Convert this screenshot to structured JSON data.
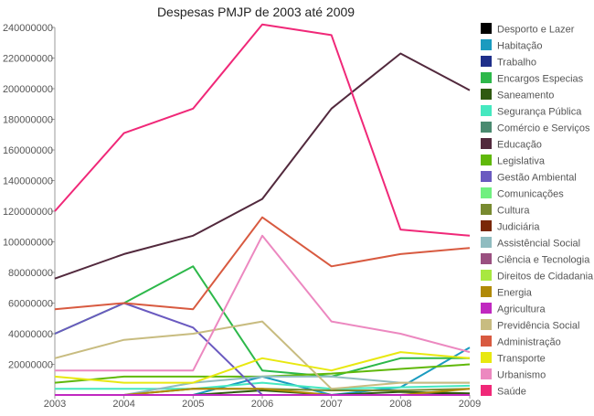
{
  "chart_data": {
    "type": "line",
    "title": "Despesas PMJP de 2003 até 2009",
    "xlabel": "",
    "ylabel": "",
    "x": [
      2003,
      2004,
      2005,
      2006,
      2007,
      2008,
      2009
    ],
    "ylim": [
      0,
      240000000
    ],
    "yticks": [
      20000000,
      40000000,
      60000000,
      80000000,
      100000000,
      120000000,
      140000000,
      160000000,
      180000000,
      200000000,
      220000000,
      240000000
    ],
    "ytick_labels": [
      "20000000",
      "40000000",
      "60000000",
      "80000000",
      "100000000",
      "120000000",
      "140000000",
      "160000000",
      "180000000",
      "200000000",
      "220000000",
      "240000000"
    ],
    "xtick_labels": [
      "2003",
      "2004",
      "2005",
      "2006",
      "2007",
      "2008",
      "2009"
    ],
    "grid": false,
    "legend_position": "right",
    "series": [
      {
        "name": "Desporto e Lazer",
        "color": "#000000",
        "values": [
          0,
          0,
          0,
          0,
          0,
          0,
          500000
        ]
      },
      {
        "name": "Habitação",
        "color": "#1a9bbf",
        "values": [
          0,
          0,
          0,
          12000000,
          0,
          5000000,
          31000000
        ]
      },
      {
        "name": "Trabalho",
        "color": "#1f2f8a",
        "values": [
          0,
          0,
          0,
          0,
          0,
          0,
          0
        ]
      },
      {
        "name": "Encargos Especias",
        "color": "#2db84a",
        "values": [
          40000000,
          60000000,
          84000000,
          16000000,
          12000000,
          24000000,
          24000000
        ]
      },
      {
        "name": "Saneamento",
        "color": "#2f5a10",
        "values": [
          0,
          0,
          0,
          3000000,
          0,
          2000000,
          1000000
        ]
      },
      {
        "name": "Segurança Pública",
        "color": "#45e8c0",
        "values": [
          4000000,
          4000000,
          4000000,
          8000000,
          4000000,
          5000000,
          6000000
        ]
      },
      {
        "name": "Comércio e Serviços",
        "color": "#4a8a70",
        "values": [
          0,
          0,
          0,
          0,
          0,
          0,
          0
        ]
      },
      {
        "name": "Educação",
        "color": "#52293d",
        "values": [
          76000000,
          92000000,
          104000000,
          128000000,
          187000000,
          223000000,
          199000000
        ]
      },
      {
        "name": "Legislativa",
        "color": "#60b80a",
        "values": [
          8000000,
          12000000,
          12000000,
          12000000,
          14000000,
          17000000,
          20000000
        ]
      },
      {
        "name": "Gestão Ambiental",
        "color": "#6a5ac0",
        "values": [
          40000000,
          60000000,
          44000000,
          0,
          0,
          0,
          0
        ]
      },
      {
        "name": "Comunicações",
        "color": "#70f080",
        "values": [
          0,
          0,
          0,
          0,
          0,
          0,
          0
        ]
      },
      {
        "name": "Cultura",
        "color": "#788a30",
        "values": [
          0,
          0,
          4000000,
          4000000,
          3000000,
          3000000,
          4000000
        ]
      },
      {
        "name": "Judiciária",
        "color": "#7a2808",
        "values": [
          0,
          0,
          0,
          0,
          0,
          0,
          0
        ]
      },
      {
        "name": "Assistêncial Social",
        "color": "#90bcc0",
        "values": [
          0,
          0,
          8000000,
          12000000,
          12000000,
          8000000,
          8000000
        ]
      },
      {
        "name": "Ciência e Tecnologia",
        "color": "#9a5080",
        "values": [
          0,
          0,
          0,
          0,
          0,
          0,
          0
        ]
      },
      {
        "name": "Direitos de Cidadania",
        "color": "#a8e840",
        "values": [
          0,
          0,
          0,
          0,
          0,
          0,
          0
        ]
      },
      {
        "name": "Energia",
        "color": "#b08a08",
        "values": [
          0,
          0,
          4000000,
          4000000,
          0,
          0,
          4000000
        ]
      },
      {
        "name": "Agricultura",
        "color": "#c028c0",
        "values": [
          0,
          0,
          0,
          0,
          0,
          0,
          0
        ]
      },
      {
        "name": "Previdência Social",
        "color": "#c8bc80",
        "values": [
          24000000,
          36000000,
          40000000,
          48000000,
          4000000,
          8000000,
          8000000
        ]
      },
      {
        "name": "Administração",
        "color": "#d85a40",
        "values": [
          56000000,
          60000000,
          56000000,
          116000000,
          84000000,
          92000000,
          96000000
        ]
      },
      {
        "name": "Transporte",
        "color": "#e8e810",
        "values": [
          12000000,
          8000000,
          8000000,
          24000000,
          16000000,
          28000000,
          24000000
        ]
      },
      {
        "name": "Urbanismo",
        "color": "#ec88c0",
        "values": [
          16000000,
          16000000,
          16000000,
          104000000,
          48000000,
          40000000,
          28000000
        ]
      },
      {
        "name": "Saúde",
        "color": "#f02878",
        "values": [
          120000000,
          171000000,
          187000000,
          242000000,
          235000000,
          108000000,
          104000000
        ]
      }
    ]
  }
}
